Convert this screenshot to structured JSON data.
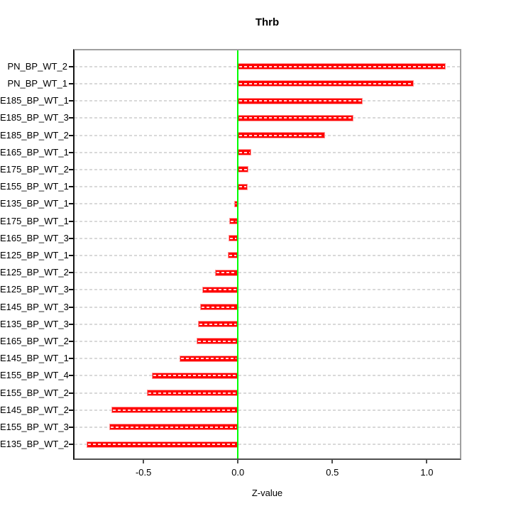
{
  "chart_data": {
    "type": "bar",
    "orientation": "horizontal",
    "title": "Thrb",
    "xlabel": "Z-value",
    "categories": [
      "PN_BP_WT_2",
      "PN_BP_WT_1",
      "E185_BP_WT_1",
      "E185_BP_WT_3",
      "E185_BP_WT_2",
      "E165_BP_WT_1",
      "E175_BP_WT_2",
      "E155_BP_WT_1",
      "E135_BP_WT_1",
      "E175_BP_WT_1",
      "E165_BP_WT_3",
      "E125_BP_WT_1",
      "E125_BP_WT_2",
      "E125_BP_WT_3",
      "E145_BP_WT_3",
      "E135_BP_WT_3",
      "E165_BP_WT_2",
      "E145_BP_WT_1",
      "E155_BP_WT_4",
      "E155_BP_WT_2",
      "E145_BP_WT_2",
      "E155_BP_WT_3",
      "E135_BP_WT_2"
    ],
    "values": [
      1.1,
      0.93,
      0.66,
      0.61,
      0.46,
      0.07,
      0.055,
      0.05,
      -0.02,
      -0.046,
      -0.05,
      -0.055,
      -0.12,
      -0.19,
      -0.2,
      -0.21,
      -0.22,
      -0.31,
      -0.455,
      -0.48,
      -0.67,
      -0.68,
      -0.8
    ],
    "xticks": [
      {
        "value": -0.5,
        "label": "-0.5"
      },
      {
        "value": 0.0,
        "label": "0.0"
      },
      {
        "value": 0.5,
        "label": "0.5"
      },
      {
        "value": 1.0,
        "label": "1.0"
      }
    ],
    "xlim": [
      -0.865,
      1.175
    ],
    "grid": true,
    "legend": null,
    "colors": {
      "bar": "#ff0000",
      "bar_border": "#ff9999",
      "bar_dash": "#ffffff",
      "zero_line": "#00ff00",
      "grid": "#d9d9d9",
      "box_border": "#a0a0a0",
      "x_axis": "#4f4f4f",
      "y_axis": "#141414",
      "text": "#000000"
    }
  }
}
